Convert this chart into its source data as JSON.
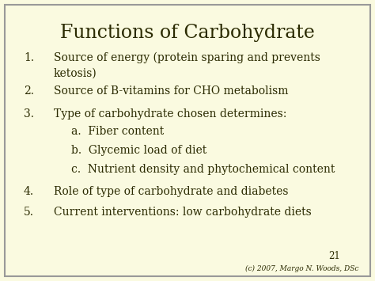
{
  "title": "Functions of Carbohydrate",
  "background_color": "#fafae0",
  "border_color": "#999999",
  "text_color": "#2a2a00",
  "title_fontsize": 17,
  "body_fontsize": 10,
  "small_fontsize": 6.5,
  "page_num_fontsize": 8.5,
  "main_items": [
    {
      "num": "1.",
      "text": "Source of energy (protein sparing and prevents\n        ketosis)"
    },
    {
      "num": "2.",
      "text": "Source of B-vitamins for CHO metabolism"
    },
    {
      "num": "3.",
      "text": "Type of carbohydrate chosen determines:"
    },
    {
      "num": "4.",
      "text": "Role of type of carbohydrate and diabetes"
    },
    {
      "num": "5.",
      "text": "Current interventions: low carbohydrate diets"
    }
  ],
  "sub_items": [
    "a.  Fiber content",
    "b.  Glycemic load of diet",
    "c.  Nutrient density and phytochemical content"
  ],
  "page_number": "21",
  "copyright": "(c) 2007, Margo N. Woods, DSc"
}
